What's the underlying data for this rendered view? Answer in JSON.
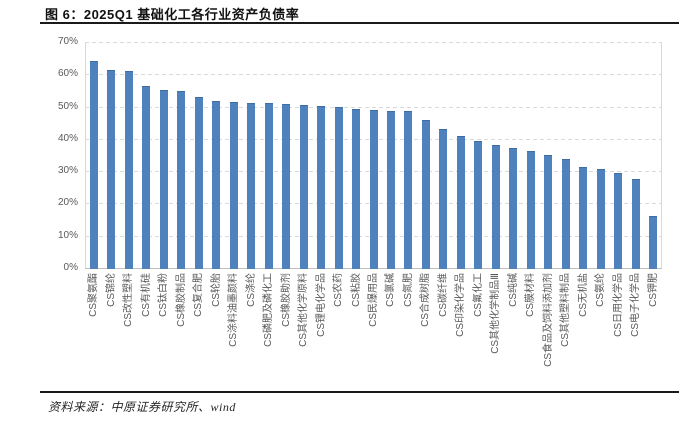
{
  "figure": {
    "title": "图 6：2025Q1 基础化工各行业资产负债率",
    "source": "资料来源：中原证券研究所、wind"
  },
  "chart_data": {
    "type": "bar",
    "title": "2025Q1 基础化工各行业资产负债率",
    "categories": [
      "CS聚氨酯",
      "CS锦纶",
      "CS改性塑料",
      "CS有机硅",
      "CS钛白粉",
      "CS橡胶制品",
      "CS复合肥",
      "CS轮胎",
      "CS涂料油墨颜料",
      "CS涤纶",
      "CS磷肥及磷化工",
      "CS橡胶助剂",
      "CS其他化学原料",
      "CS锂电化学品",
      "CS农药",
      "CS粘胶",
      "CS民爆用品",
      "CS氯碱",
      "CS氮肥",
      "CS合成树脂",
      "CS碳纤维",
      "CS印染化学品",
      "CS氟化工",
      "CS其他化学制品Ⅲ",
      "CS纯碱",
      "CS膜材料",
      "CS食品及饲料添加剂",
      "CS其他塑料制品",
      "CS无机盐",
      "CS氨纶",
      "CS日用化学品",
      "CS电子化学品",
      "CS钾肥"
    ],
    "values": [
      64.0,
      61.2,
      60.9,
      56.5,
      55.1,
      54.7,
      53.0,
      51.7,
      51.5,
      51.2,
      51.0,
      50.7,
      50.4,
      50.3,
      49.8,
      49.2,
      48.9,
      48.6,
      48.5,
      45.7,
      43.0,
      41.0,
      39.2,
      38.0,
      37.2,
      36.3,
      34.9,
      33.9,
      31.4,
      30.7,
      29.5,
      27.5,
      16.0
    ],
    "unit": "%",
    "xlabel": "",
    "ylabel": "",
    "ylim": [
      0,
      70
    ],
    "ytick_step": 10,
    "yticks": [
      "0%",
      "10%",
      "20%",
      "30%",
      "40%",
      "50%",
      "60%",
      "70%"
    ],
    "grid": "horizontal-dashed",
    "legend": "none",
    "bar_color": "#4F81BD",
    "axis_label_color": "#595959",
    "gridline_color": "#D9D9D9"
  }
}
